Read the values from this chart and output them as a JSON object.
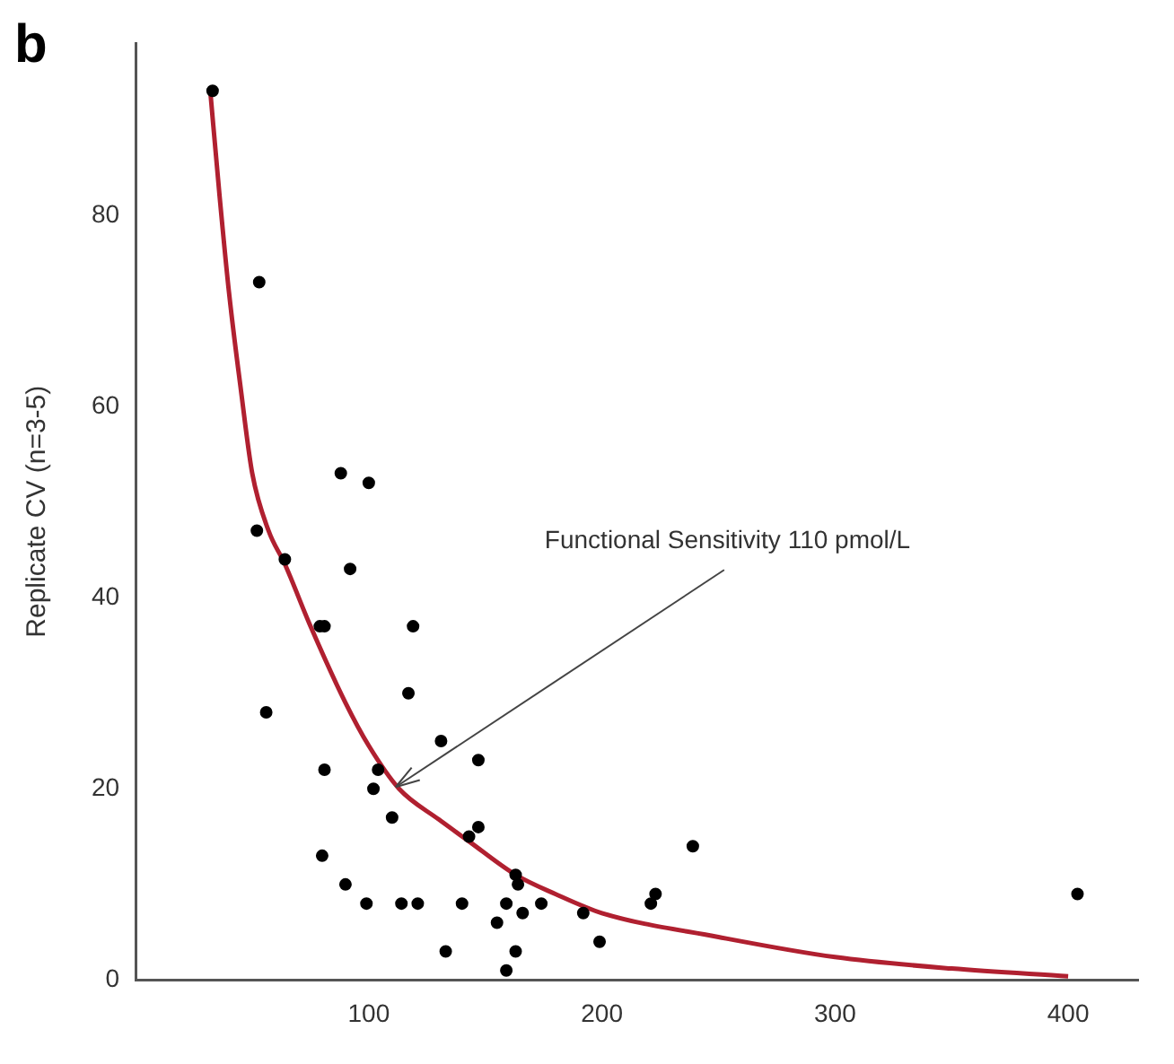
{
  "chart_data": {
    "type": "scatter",
    "title": "b",
    "ylabel": "Replicate CV (n=3-5)",
    "xlim": [
      0,
      430
    ],
    "xticks": [
      100,
      200,
      300,
      400
    ],
    "ylim": [
      0,
      98
    ],
    "yticks": [
      0,
      20,
      40,
      60,
      80
    ],
    "grid": false,
    "legend": false,
    "marker": "circle",
    "annotations": [
      {
        "text": "Functional Sensitivity 110 pmol/L",
        "x": 110,
        "y": 20
      }
    ],
    "series": [
      {
        "color": "#000000",
        "x": [
          33,
          53,
          88,
          100,
          52,
          64,
          92,
          79,
          81,
          119,
          56,
          117,
          131,
          147,
          81,
          104,
          102,
          110,
          147,
          143,
          80,
          90,
          99,
          114,
          121,
          140,
          159,
          163,
          164,
          166,
          174,
          155,
          192,
          199,
          133,
          163,
          159,
          239,
          223,
          221,
          404
        ],
        "values": [
          93,
          73,
          53,
          52,
          47,
          44,
          43,
          37,
          37,
          37,
          28,
          30,
          25,
          23,
          22,
          22,
          20,
          17,
          16,
          15,
          13,
          10,
          8,
          8,
          8,
          8,
          8,
          11,
          10,
          7,
          8,
          6,
          7,
          4,
          3,
          3,
          1,
          14,
          9,
          8,
          9
        ]
      },
      {
        "type": "line",
        "color": "#b02030",
        "marker": "none",
        "x": [
          32,
          36,
          40,
          45,
          50,
          57,
          64,
          75,
          90,
          100,
          113,
          130,
          143,
          163,
          180,
          200,
          250,
          300,
          350,
          400
        ],
        "values": [
          93,
          82,
          72,
          62,
          53,
          47,
          43.5,
          37,
          29,
          24.5,
          20,
          16.8,
          14.5,
          11,
          9,
          7,
          4.5,
          2.4,
          1.2,
          0.4
        ]
      }
    ]
  }
}
